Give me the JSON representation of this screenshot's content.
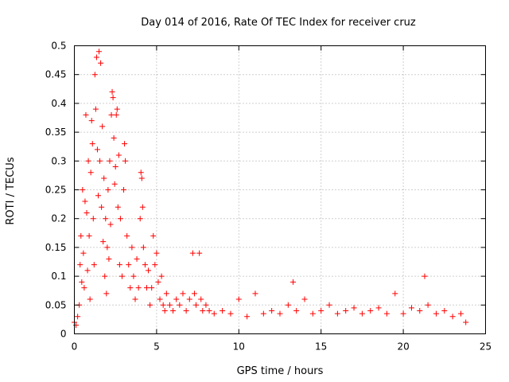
{
  "chart_data": {
    "type": "scatter",
    "title": "Day 014 of 2016, Rate Of TEC Index for receiver cruz",
    "xlabel": "GPS time / hours",
    "ylabel": "ROTI / TECUs",
    "xlim": [
      0,
      25
    ],
    "ylim": [
      0,
      0.5
    ],
    "x_ticks": [
      0,
      5,
      10,
      15,
      20,
      25
    ],
    "x_tick_labels": [
      "0",
      "5",
      "10",
      "15",
      "20",
      "25"
    ],
    "y_ticks": [
      0,
      0.05,
      0.1,
      0.15,
      0.2,
      0.25,
      0.3,
      0.35,
      0.4,
      0.45,
      0.5
    ],
    "y_tick_labels": [
      "0",
      "0.05",
      "0.1",
      "0.15",
      "0.2",
      "0.25",
      "0.3",
      "0.35",
      "0.4",
      "0.45",
      "0.5"
    ],
    "grid": true,
    "marker": "+",
    "color": "#ff0000",
    "series": [
      {
        "name": "ROTI",
        "points": [
          [
            0.0,
            0.02
          ],
          [
            0.1,
            0.015
          ],
          [
            0.2,
            0.03
          ],
          [
            0.3,
            0.05
          ],
          [
            0.35,
            0.12
          ],
          [
            0.4,
            0.17
          ],
          [
            0.45,
            0.09
          ],
          [
            0.5,
            0.25
          ],
          [
            0.55,
            0.14
          ],
          [
            0.6,
            0.08
          ],
          [
            0.65,
            0.23
          ],
          [
            0.7,
            0.38
          ],
          [
            0.75,
            0.21
          ],
          [
            0.8,
            0.11
          ],
          [
            0.85,
            0.3
          ],
          [
            0.9,
            0.17
          ],
          [
            0.95,
            0.06
          ],
          [
            1.0,
            0.28
          ],
          [
            1.05,
            0.37
          ],
          [
            1.1,
            0.33
          ],
          [
            1.15,
            0.2
          ],
          [
            1.2,
            0.12
          ],
          [
            1.25,
            0.45
          ],
          [
            1.3,
            0.39
          ],
          [
            1.35,
            0.48
          ],
          [
            1.4,
            0.32
          ],
          [
            1.45,
            0.24
          ],
          [
            1.5,
            0.49
          ],
          [
            1.55,
            0.3
          ],
          [
            1.6,
            0.47
          ],
          [
            1.65,
            0.22
          ],
          [
            1.7,
            0.36
          ],
          [
            1.75,
            0.16
          ],
          [
            1.8,
            0.27
          ],
          [
            1.85,
            0.1
          ],
          [
            1.9,
            0.2
          ],
          [
            1.95,
            0.07
          ],
          [
            2.0,
            0.15
          ],
          [
            2.05,
            0.25
          ],
          [
            2.1,
            0.13
          ],
          [
            2.15,
            0.3
          ],
          [
            2.2,
            0.19
          ],
          [
            2.25,
            0.38
          ],
          [
            2.3,
            0.42
          ],
          [
            2.35,
            0.41
          ],
          [
            2.4,
            0.34
          ],
          [
            2.45,
            0.26
          ],
          [
            2.5,
            0.29
          ],
          [
            2.55,
            0.38
          ],
          [
            2.6,
            0.39
          ],
          [
            2.65,
            0.22
          ],
          [
            2.7,
            0.31
          ],
          [
            2.75,
            0.12
          ],
          [
            2.8,
            0.2
          ],
          [
            2.9,
            0.1
          ],
          [
            3.0,
            0.25
          ],
          [
            3.05,
            0.33
          ],
          [
            3.1,
            0.3
          ],
          [
            3.2,
            0.17
          ],
          [
            3.3,
            0.12
          ],
          [
            3.4,
            0.08
          ],
          [
            3.5,
            0.15
          ],
          [
            3.6,
            0.1
          ],
          [
            3.7,
            0.06
          ],
          [
            3.8,
            0.13
          ],
          [
            3.9,
            0.08
          ],
          [
            4.0,
            0.2
          ],
          [
            4.05,
            0.28
          ],
          [
            4.1,
            0.27
          ],
          [
            4.15,
            0.22
          ],
          [
            4.2,
            0.15
          ],
          [
            4.3,
            0.12
          ],
          [
            4.4,
            0.08
          ],
          [
            4.5,
            0.11
          ],
          [
            4.6,
            0.05
          ],
          [
            4.7,
            0.08
          ],
          [
            4.8,
            0.17
          ],
          [
            4.9,
            0.12
          ],
          [
            5.0,
            0.14
          ],
          [
            5.1,
            0.09
          ],
          [
            5.2,
            0.06
          ],
          [
            5.3,
            0.1
          ],
          [
            5.4,
            0.05
          ],
          [
            5.5,
            0.04
          ],
          [
            5.6,
            0.07
          ],
          [
            5.8,
            0.05
          ],
          [
            6.0,
            0.04
          ],
          [
            6.2,
            0.06
          ],
          [
            6.4,
            0.05
          ],
          [
            6.6,
            0.07
          ],
          [
            6.8,
            0.04
          ],
          [
            7.0,
            0.06
          ],
          [
            7.2,
            0.14
          ],
          [
            7.3,
            0.07
          ],
          [
            7.4,
            0.05
          ],
          [
            7.6,
            0.14
          ],
          [
            7.7,
            0.06
          ],
          [
            7.8,
            0.04
          ],
          [
            8.0,
            0.05
          ],
          [
            8.2,
            0.04
          ],
          [
            8.5,
            0.035
          ],
          [
            9.0,
            0.04
          ],
          [
            9.5,
            0.035
          ],
          [
            10.0,
            0.06
          ],
          [
            10.5,
            0.03
          ],
          [
            11.0,
            0.07
          ],
          [
            11.5,
            0.035
          ],
          [
            12.0,
            0.04
          ],
          [
            12.5,
            0.035
          ],
          [
            13.0,
            0.05
          ],
          [
            13.3,
            0.09
          ],
          [
            13.5,
            0.04
          ],
          [
            14.0,
            0.06
          ],
          [
            14.5,
            0.035
          ],
          [
            15.0,
            0.04
          ],
          [
            15.5,
            0.05
          ],
          [
            16.0,
            0.035
          ],
          [
            16.5,
            0.04
          ],
          [
            17.0,
            0.045
          ],
          [
            17.5,
            0.035
          ],
          [
            18.0,
            0.04
          ],
          [
            18.5,
            0.045
          ],
          [
            19.0,
            0.035
          ],
          [
            19.5,
            0.07
          ],
          [
            20.0,
            0.035
          ],
          [
            20.5,
            0.045
          ],
          [
            21.0,
            0.04
          ],
          [
            21.3,
            0.1
          ],
          [
            21.5,
            0.05
          ],
          [
            22.0,
            0.035
          ],
          [
            22.5,
            0.04
          ],
          [
            23.0,
            0.03
          ],
          [
            23.5,
            0.035
          ],
          [
            23.8,
            0.02
          ]
        ]
      }
    ]
  }
}
